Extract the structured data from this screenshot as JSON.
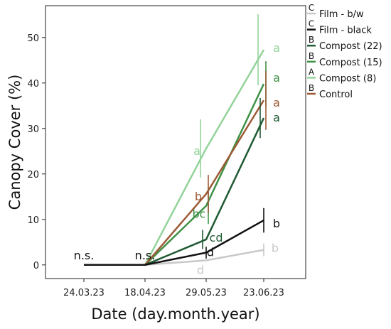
{
  "chart_data": {
    "type": "line",
    "xlabel": "Date (day.month.year)",
    "ylabel": "Canopy Cover (%)",
    "x": [
      "24.03.23",
      "18.04.23",
      "29.05.23",
      "23.06.23"
    ],
    "ylim": [
      -3,
      57
    ],
    "yticks": [
      0,
      10,
      20,
      30,
      40,
      50
    ],
    "grid": false,
    "legend_position": "right",
    "series": [
      {
        "name": "Film - b/w",
        "group_letter": "C",
        "color": "#c8c8c8",
        "values": [
          0,
          0,
          1.0,
          3.3
        ],
        "errors": [
          0,
          0,
          0,
          1.4
        ],
        "labels": [
          "",
          "",
          "d",
          "b"
        ]
      },
      {
        "name": "Film - black",
        "group_letter": "C",
        "color": "#111111",
        "values": [
          0,
          0,
          2.7,
          9.8
        ],
        "errors": [
          0,
          0,
          1.3,
          2.7
        ],
        "labels": [
          "",
          "",
          "d",
          "b"
        ]
      },
      {
        "name": "Compost (22)",
        "group_letter": "B",
        "color": "#1f5a33",
        "values": [
          0,
          0,
          5.6,
          32.3
        ],
        "errors": [
          0,
          0,
          2.1,
          4.4
        ],
        "labels": [
          "",
          "",
          "cd",
          "a"
        ]
      },
      {
        "name": "Compost (15)",
        "group_letter": "B",
        "color": "#3f9146",
        "values": [
          0,
          0,
          13.0,
          39.8
        ],
        "errors": [
          0,
          0,
          4.0,
          5.0
        ],
        "labels": [
          "",
          "",
          "bc",
          "a"
        ]
      },
      {
        "name": "Compost (8)",
        "group_letter": "A",
        "color": "#93d399",
        "values": [
          0,
          0,
          25.6,
          47.3
        ],
        "errors": [
          0,
          0,
          6.4,
          7.8
        ],
        "labels": [
          "",
          "",
          "a",
          "a"
        ]
      },
      {
        "name": "Control",
        "group_letter": "B",
        "color": "#9d5a36",
        "values": [
          0,
          0,
          15.6,
          36.2
        ],
        "errors": [
          0,
          0,
          4.2,
          6.5
        ],
        "labels": [
          "",
          "",
          "b",
          "a"
        ]
      }
    ],
    "annotations": [
      "n.s.",
      "n.s."
    ]
  }
}
